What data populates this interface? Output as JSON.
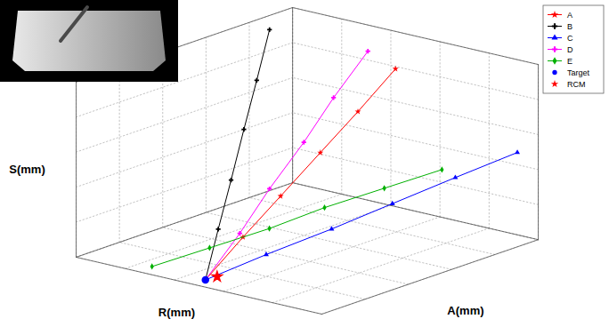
{
  "chart_data": {
    "type": "line3d",
    "x_label": "R(mm)",
    "y_label": "A(mm)",
    "z_label": "S(mm)",
    "xlim": [
      0,
      100
    ],
    "ylim": [
      0,
      100
    ],
    "zlim": [
      0,
      100
    ],
    "xticks": [
      0,
      20,
      40,
      60,
      80,
      100
    ],
    "yticks": [
      0,
      20,
      40,
      60,
      80,
      100
    ],
    "zticks": [
      0,
      20,
      40,
      60,
      80,
      100
    ],
    "grid": true,
    "tick_labels": false,
    "legend": "upper right",
    "series": [
      {
        "name": "A",
        "color": "#ff0000",
        "marker": "star",
        "x": [
          50,
          48.8,
          47.6,
          46.4,
          45.2,
          44
        ],
        "y": [
          3,
          19,
          35,
          52,
          68,
          84
        ],
        "z": [
          2,
          20,
          37,
          55,
          72,
          90
        ]
      },
      {
        "name": "B",
        "color": "#000000",
        "marker": "cross",
        "x": [
          50,
          58,
          66,
          74,
          82,
          90
        ],
        "y": [
          3,
          18,
          33,
          48,
          63,
          78
        ],
        "z": [
          2,
          22,
          41,
          61,
          80,
          100
        ]
      },
      {
        "name": "C",
        "color": "#0000ff",
        "marker": "triangle",
        "x": [
          50,
          42,
          33,
          25,
          17,
          8.5
        ],
        "y": [
          3,
          22,
          42,
          61,
          81,
          100
        ],
        "z": [
          2,
          11,
          20,
          29,
          38,
          47
        ]
      },
      {
        "name": "D",
        "color": "#ff00ff",
        "marker": "cross",
        "x": [
          50,
          51,
          53,
          54,
          56,
          57
        ],
        "y": [
          3,
          20,
          36,
          53,
          69,
          86
        ],
        "z": [
          2,
          21,
          39,
          58,
          76,
          95
        ]
      },
      {
        "name": "E",
        "color": "#00b000",
        "marker": "diamond",
        "x": [
          70,
          58,
          46,
          35,
          23,
          11
        ],
        "y": [
          1,
          14,
          28,
          41,
          55,
          68
        ],
        "z": [
          4,
          13,
          22,
          32,
          41,
          50
        ]
      }
    ],
    "points": [
      {
        "name": "Target",
        "color": "#0000ff",
        "marker": "circle",
        "x": 50,
        "y": 3,
        "z": 2
      },
      {
        "name": "RCM",
        "color": "#ff0000",
        "marker": "star",
        "x": 47,
        "y": 5,
        "z": 4
      }
    ]
  }
}
